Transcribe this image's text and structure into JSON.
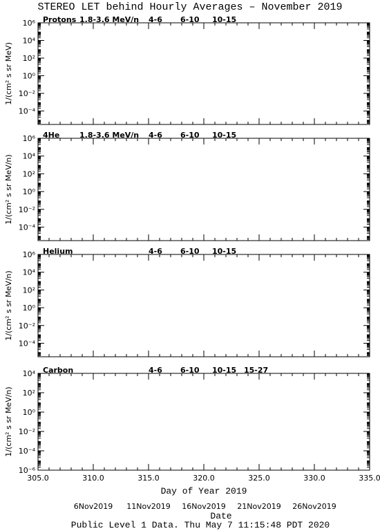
{
  "title": "STEREO LET behind Hourly Averages – November 2019",
  "footer": "Public Level 1 Data. Thu May  7 11:15:48 PDT 2020",
  "chart_data": [
    {
      "type": "line",
      "label": "Protons",
      "sublabel": "1.8-3.6 MeV/n",
      "ylabel": "1/(cm² s sr MeV)",
      "yscale": "log",
      "ylim": [
        3e-06,
        1000000
      ],
      "yticks": [
        {
          "value": 1000000,
          "label": "10⁶"
        },
        {
          "value": 10000,
          "label": "10⁴"
        },
        {
          "value": 100,
          "label": "10²"
        },
        {
          "value": 1,
          "label": "10⁰"
        },
        {
          "value": 0.01,
          "label": "10⁻²"
        },
        {
          "value": 0.0001,
          "label": "10⁻⁴"
        }
      ],
      "xlim": [
        305,
        335
      ],
      "xticks": [
        305,
        310,
        315,
        320,
        325,
        330,
        335
      ],
      "x": [],
      "series": [
        {
          "name": "4-6",
          "color": "#b00000",
          "values": []
        },
        {
          "name": "6-10",
          "color": "#e00000",
          "values": []
        },
        {
          "name": "10-15",
          "color": "#808080",
          "values": []
        }
      ]
    },
    {
      "type": "line",
      "label": "4He",
      "sublabel": "1.8-3.6 MeV/n",
      "ylabel": "1/(cm² s sr MeV/n)",
      "yscale": "log",
      "ylim": [
        3e-06,
        1000000
      ],
      "yticks": [
        {
          "value": 1000000,
          "label": "10⁶"
        },
        {
          "value": 10000,
          "label": "10⁴"
        },
        {
          "value": 100,
          "label": "10²"
        },
        {
          "value": 1,
          "label": "10⁰"
        },
        {
          "value": 0.01,
          "label": "10⁻²"
        },
        {
          "value": 0.0001,
          "label": "10⁻⁴"
        }
      ],
      "xlim": [
        305,
        335
      ],
      "xticks": [
        305,
        310,
        315,
        320,
        325,
        330,
        335
      ],
      "x": [],
      "series": [
        {
          "name": "4-6",
          "color": "#b00000",
          "values": []
        },
        {
          "name": "6-10",
          "color": "#e00000",
          "values": []
        },
        {
          "name": "10-15",
          "color": "#808080",
          "values": []
        }
      ]
    },
    {
      "type": "line",
      "label": "Helium",
      "ylabel": "1/(cm² s sr MeV/n)",
      "yscale": "log",
      "ylim": [
        3e-06,
        1000000
      ],
      "yticks": [
        {
          "value": 1000000,
          "label": "10⁶"
        },
        {
          "value": 10000,
          "label": "10⁴"
        },
        {
          "value": 100,
          "label": "10²"
        },
        {
          "value": 1,
          "label": "10⁰"
        },
        {
          "value": 0.01,
          "label": "10⁻²"
        },
        {
          "value": 0.0001,
          "label": "10⁻⁴"
        }
      ],
      "xlim": [
        305,
        335
      ],
      "xticks": [
        305,
        310,
        315,
        320,
        325,
        330,
        335
      ],
      "x": [],
      "series": [
        {
          "name": "4-6",
          "color": "#b00000",
          "values": []
        },
        {
          "name": "6-10",
          "color": "#e00000",
          "values": []
        },
        {
          "name": "10-15",
          "color": "#808080",
          "values": []
        }
      ]
    },
    {
      "type": "line",
      "label": "Carbon",
      "ylabel": "1/(cm² s sr MeV/n)",
      "yscale": "log",
      "ylim": [
        1e-06,
        10000
      ],
      "yticks": [
        {
          "value": 10000,
          "label": "10⁴"
        },
        {
          "value": 100,
          "label": "10²"
        },
        {
          "value": 1,
          "label": "10⁰"
        },
        {
          "value": 0.01,
          "label": "10⁻²"
        },
        {
          "value": 0.0001,
          "label": "10⁻⁴"
        },
        {
          "value": 1e-06,
          "label": "10⁻⁶"
        }
      ],
      "xlim": [
        305,
        335
      ],
      "xticks": [
        {
          "value": 305,
          "label": "305.0"
        },
        {
          "value": 310,
          "label": "310.0"
        },
        {
          "value": 315,
          "label": "315.0"
        },
        {
          "value": 320,
          "label": "320.0"
        },
        {
          "value": 325,
          "label": "325.0"
        },
        {
          "value": 330,
          "label": "330.0"
        },
        {
          "value": 335,
          "label": "335.0"
        }
      ],
      "xlabel": "Day of Year 2019",
      "x2ticks": [
        {
          "value": 310,
          "label": "6Nov2019"
        },
        {
          "value": 315,
          "label": "11Nov2019"
        },
        {
          "value": 320,
          "label": "16Nov2019"
        },
        {
          "value": 325,
          "label": "21Nov2019"
        },
        {
          "value": 330,
          "label": "26Nov2019"
        }
      ],
      "x2label": "Date",
      "x": [],
      "series": [
        {
          "name": "4-6",
          "color": "#b00000",
          "values": []
        },
        {
          "name": "6-10",
          "color": "#e00000",
          "values": []
        },
        {
          "name": "10-15",
          "color": "#808080",
          "values": []
        },
        {
          "name": "15-27",
          "color": "#0000cc",
          "values": []
        }
      ]
    }
  ]
}
